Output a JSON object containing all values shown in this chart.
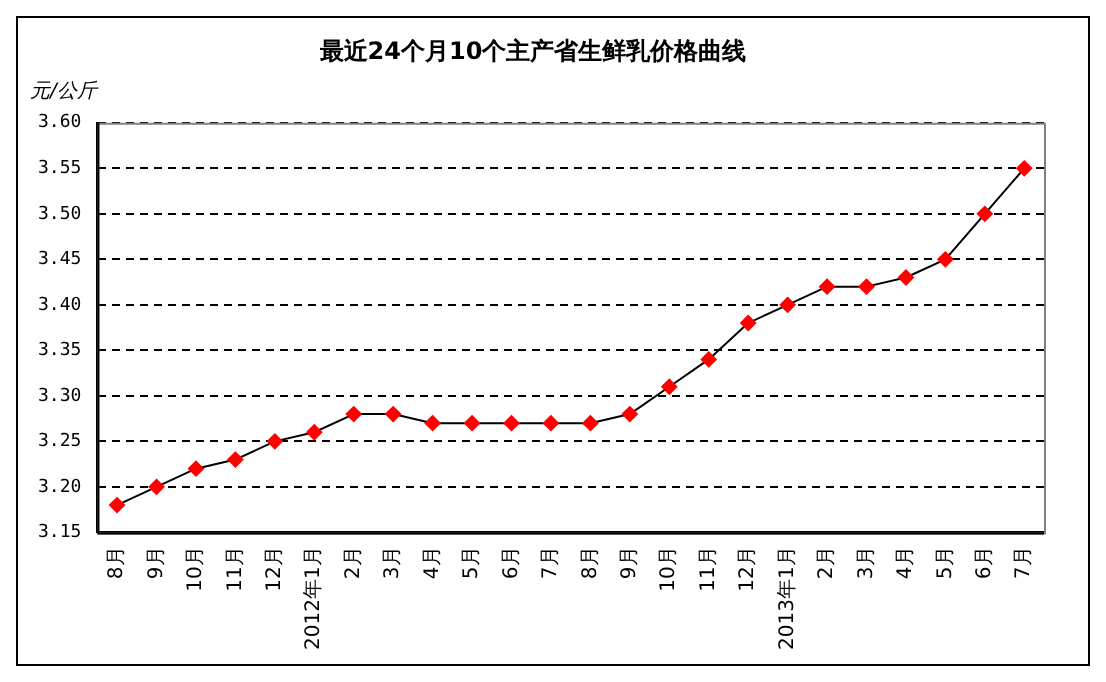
{
  "chart_data": {
    "type": "line",
    "title": "最近24个月10个主产省生鲜乳价格曲线",
    "ylabel": "元/公斤",
    "categories": [
      "8月",
      "9月",
      "10月",
      "11月",
      "12月",
      "2012年1月",
      "2月",
      "3月",
      "4月",
      "5月",
      "6月",
      "7月",
      "8月",
      "9月",
      "10月",
      "11月",
      "12月",
      "2013年1月",
      "2月",
      "3月",
      "4月",
      "5月",
      "6月",
      "7月"
    ],
    "series": [
      {
        "color": "#ff0000",
        "values": [
          3.18,
          3.2,
          3.22,
          3.23,
          3.25,
          3.26,
          3.28,
          3.28,
          3.27,
          3.27,
          3.27,
          3.27,
          3.27,
          3.28,
          3.31,
          3.34,
          3.38,
          3.4,
          3.42,
          3.42,
          3.43,
          3.45,
          3.5,
          3.55
        ]
      }
    ],
    "ylim": [
      3.15,
      3.6
    ],
    "yticks": [
      {
        "value": 3.15,
        "label": "3.15"
      },
      {
        "value": 3.2,
        "label": "3.20"
      },
      {
        "value": 3.25,
        "label": "3.25"
      },
      {
        "value": 3.3,
        "label": "3.30"
      },
      {
        "value": 3.35,
        "label": "3.35"
      },
      {
        "value": 3.4,
        "label": "3.40"
      },
      {
        "value": 3.45,
        "label": "3.45"
      },
      {
        "value": 3.5,
        "label": "3.50"
      },
      {
        "value": 3.55,
        "label": "3.55"
      },
      {
        "value": 3.6,
        "label": "3.60"
      }
    ],
    "grid": "y",
    "legend": false,
    "marker": "diamond",
    "line_style": "solid"
  }
}
